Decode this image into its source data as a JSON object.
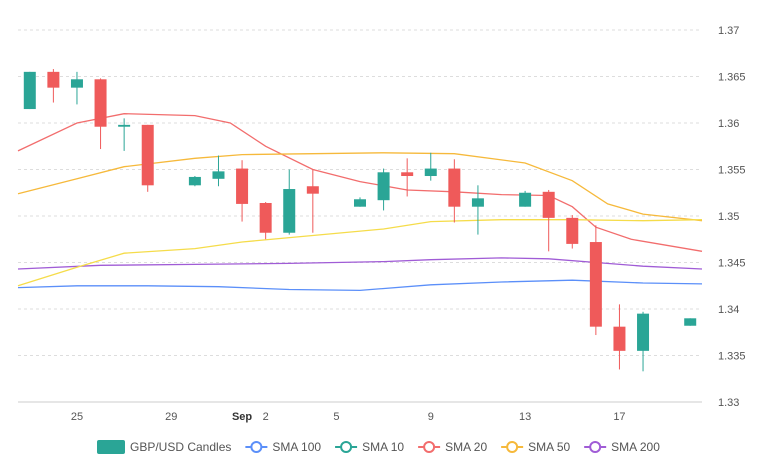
{
  "chart_data": {
    "type": "candlestick",
    "y_ticks": [
      "1.33",
      "1.335",
      "1.34",
      "1.345",
      "1.35",
      "1.355",
      "1.36",
      "1.365",
      "1.37"
    ],
    "ylim": [
      1.33,
      1.37
    ],
    "x_ticks": [
      {
        "day": 25,
        "label": "25"
      },
      {
        "day": 29,
        "label": "29"
      },
      {
        "day": 32,
        "label": "Sep",
        "bold": true
      },
      {
        "day": 33,
        "label": "2"
      },
      {
        "day": 36,
        "label": "5"
      },
      {
        "day": 40,
        "label": "9"
      },
      {
        "day": 44,
        "label": "13"
      },
      {
        "day": 48,
        "label": "17"
      }
    ],
    "xlim": [
      22.5,
      51.5
    ],
    "grid": true,
    "candles": [
      {
        "day": 23,
        "open": 1.3615,
        "high": 1.3655,
        "low": 1.3615,
        "close": 1.3655
      },
      {
        "day": 24,
        "open": 1.3655,
        "high": 1.3658,
        "low": 1.3622,
        "close": 1.3638
      },
      {
        "day": 25,
        "open": 1.3638,
        "high": 1.3655,
        "low": 1.362,
        "close": 1.3647
      },
      {
        "day": 26,
        "open": 1.3647,
        "high": 1.3648,
        "low": 1.3572,
        "close": 1.3596
      },
      {
        "day": 27,
        "open": 1.3596,
        "high": 1.3605,
        "low": 1.357,
        "close": 1.3598
      },
      {
        "day": 28,
        "open": 1.3598,
        "high": 1.3598,
        "low": 1.3526,
        "close": 1.3533
      },
      {
        "day": 30,
        "open": 1.3533,
        "high": 1.3543,
        "low": 1.3532,
        "close": 1.3542
      },
      {
        "day": 31,
        "open": 1.354,
        "high": 1.3565,
        "low": 1.3532,
        "close": 1.3548
      },
      {
        "day": 32,
        "open": 1.3551,
        "high": 1.356,
        "low": 1.3494,
        "close": 1.3513
      },
      {
        "day": 33,
        "open": 1.3514,
        "high": 1.3515,
        "low": 1.3475,
        "close": 1.3482
      },
      {
        "day": 34,
        "open": 1.3482,
        "high": 1.355,
        "low": 1.348,
        "close": 1.3529
      },
      {
        "day": 35,
        "open": 1.3532,
        "high": 1.355,
        "low": 1.3482,
        "close": 1.3524
      },
      {
        "day": 37,
        "open": 1.351,
        "high": 1.352,
        "low": 1.351,
        "close": 1.3518
      },
      {
        "day": 38,
        "open": 1.3517,
        "high": 1.3551,
        "low": 1.3506,
        "close": 1.3547
      },
      {
        "day": 39,
        "open": 1.3547,
        "high": 1.3562,
        "low": 1.3521,
        "close": 1.3543
      },
      {
        "day": 40,
        "open": 1.3543,
        "high": 1.3568,
        "low": 1.3538,
        "close": 1.3551
      },
      {
        "day": 41,
        "open": 1.3551,
        "high": 1.3561,
        "low": 1.3493,
        "close": 1.351
      },
      {
        "day": 42,
        "open": 1.351,
        "high": 1.3533,
        "low": 1.348,
        "close": 1.3519
      },
      {
        "day": 44,
        "open": 1.351,
        "high": 1.3527,
        "low": 1.351,
        "close": 1.3525
      },
      {
        "day": 45,
        "open": 1.3526,
        "high": 1.3528,
        "low": 1.3462,
        "close": 1.3498
      },
      {
        "day": 46,
        "open": 1.3498,
        "high": 1.3501,
        "low": 1.3465,
        "close": 1.347
      },
      {
        "day": 47,
        "open": 1.3472,
        "high": 1.349,
        "low": 1.3372,
        "close": 1.3381
      },
      {
        "day": 48,
        "open": 1.3381,
        "high": 1.3405,
        "low": 1.3335,
        "close": 1.3355
      },
      {
        "day": 49,
        "open": 1.3355,
        "high": 1.3397,
        "low": 1.3333,
        "close": 1.3395
      },
      {
        "day": 51,
        "open": 1.3382,
        "high": 1.339,
        "low": 1.3382,
        "close": 1.339
      }
    ],
    "series": [
      {
        "name": "SMA 100",
        "color": "#5b8ff9",
        "points": [
          [
            22.5,
            1.3423
          ],
          [
            25,
            1.3425
          ],
          [
            28,
            1.3425
          ],
          [
            31,
            1.3424
          ],
          [
            34,
            1.3421
          ],
          [
            37,
            1.342
          ],
          [
            40,
            1.3426
          ],
          [
            43,
            1.3429
          ],
          [
            46,
            1.3431
          ],
          [
            49,
            1.3428
          ],
          [
            51.5,
            1.3427
          ]
        ]
      },
      {
        "name": "SMA 20",
        "color": "#f26d6d",
        "points": [
          [
            22.5,
            1.357
          ],
          [
            25,
            1.36
          ],
          [
            27,
            1.361
          ],
          [
            30,
            1.3608
          ],
          [
            31.5,
            1.36
          ],
          [
            33,
            1.3575
          ],
          [
            35,
            1.355
          ],
          [
            37,
            1.3537
          ],
          [
            39,
            1.3528
          ],
          [
            41,
            1.3526
          ],
          [
            43,
            1.3523
          ],
          [
            45,
            1.3522
          ],
          [
            46,
            1.351
          ],
          [
            47,
            1.3488
          ],
          [
            48.5,
            1.3475
          ],
          [
            51.5,
            1.3462
          ]
        ]
      },
      {
        "name": "SMA 50",
        "color": "#f6b93b",
        "points": [
          [
            22.5,
            1.3524
          ],
          [
            25,
            1.354
          ],
          [
            27,
            1.3553
          ],
          [
            30,
            1.3562
          ],
          [
            32,
            1.3566
          ],
          [
            35,
            1.3567
          ],
          [
            38,
            1.3568
          ],
          [
            41,
            1.3567
          ],
          [
            44,
            1.3557
          ],
          [
            46,
            1.3538
          ],
          [
            47.5,
            1.3513
          ],
          [
            49,
            1.3502
          ],
          [
            51.5,
            1.3495
          ]
        ]
      },
      {
        "name": "SMA 200",
        "color": "#a05cd6",
        "points": [
          [
            22.5,
            1.3443
          ],
          [
            26,
            1.3447
          ],
          [
            30,
            1.3448
          ],
          [
            34,
            1.3449
          ],
          [
            38,
            1.3451
          ],
          [
            40,
            1.3453
          ],
          [
            43,
            1.3455
          ],
          [
            45,
            1.3454
          ],
          [
            47,
            1.345
          ],
          [
            49,
            1.3446
          ],
          [
            51.5,
            1.3443
          ]
        ]
      },
      {
        "name": "",
        "color": "#f5dc4a",
        "points": [
          [
            22.5,
            1.3425
          ],
          [
            25,
            1.3445
          ],
          [
            27,
            1.346
          ],
          [
            30,
            1.3465
          ],
          [
            32,
            1.3472
          ],
          [
            35,
            1.3479
          ],
          [
            38,
            1.3486
          ],
          [
            40,
            1.3494
          ],
          [
            43,
            1.3496
          ],
          [
            46,
            1.3496
          ],
          [
            49,
            1.3495
          ],
          [
            51.5,
            1.3496
          ]
        ]
      }
    ],
    "legend": {
      "placement": "bottom",
      "items": [
        {
          "label": "GBP/USD Candles",
          "kind": "box",
          "color": "#2aa596"
        },
        {
          "label": "SMA 100",
          "kind": "line",
          "color": "#5b8ff9"
        },
        {
          "label": "SMA 10",
          "kind": "line",
          "color": "#2aa596"
        },
        {
          "label": "SMA 20",
          "kind": "line",
          "color": "#f26d6d"
        },
        {
          "label": "SMA 50",
          "kind": "line",
          "color": "#f6b93b"
        },
        {
          "label": "SMA 200",
          "kind": "line",
          "color": "#a05cd6"
        }
      ]
    },
    "colors": {
      "up": "#2aa596",
      "down": "#ef5a5a",
      "grid": "#dddddd"
    }
  }
}
